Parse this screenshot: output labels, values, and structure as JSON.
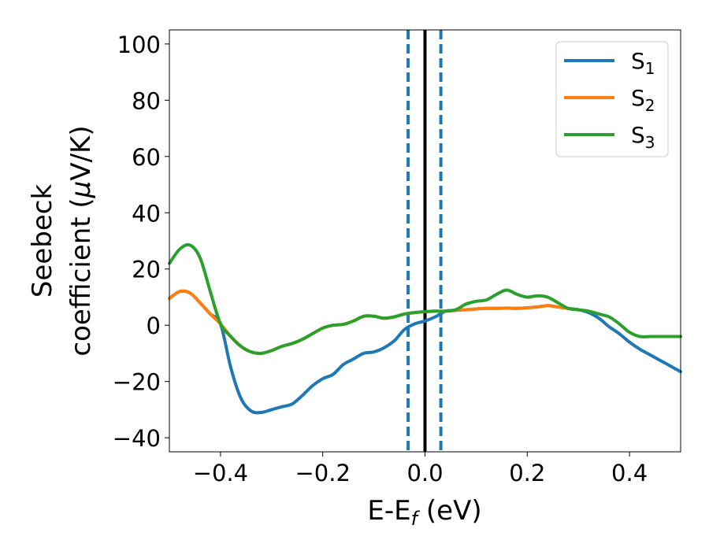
{
  "chart_data": {
    "type": "line",
    "title": "",
    "xlabel": "E-E",
    "xlabel_sub": "f",
    "xlabel_unit": " (eV)",
    "ylabel_line1": "Seebeck",
    "ylabel_line2": "coefficient  (",
    "ylabel_mu": "μ",
    "ylabel_unit": "V/K)",
    "xlim": [
      -0.5,
      0.5
    ],
    "ylim": [
      -45,
      105
    ],
    "xticks": [
      -0.4,
      -0.2,
      0.0,
      0.2,
      0.4
    ],
    "xtick_labels": [
      "−0.4",
      "−0.2",
      "0.0",
      "0.2",
      "0.4"
    ],
    "yticks": [
      -40,
      -20,
      0,
      20,
      40,
      60,
      80,
      100
    ],
    "ytick_labels": [
      "−40",
      "−20",
      "0",
      "20",
      "40",
      "60",
      "80",
      "100"
    ],
    "grid": false,
    "legend_position": "top-right",
    "vlines": [
      {
        "x": -0.033,
        "style": "dashed",
        "color": "#1f77b4"
      },
      {
        "x": 0.0,
        "style": "solid",
        "color": "#000000"
      },
      {
        "x": 0.031,
        "style": "dashed",
        "color": "#1f77b4"
      }
    ],
    "series": [
      {
        "name": "S",
        "sub": "1",
        "color": "#1f77b4",
        "x": [
          -0.5,
          -0.48,
          -0.46,
          -0.44,
          -0.42,
          -0.4,
          -0.38,
          -0.36,
          -0.34,
          -0.32,
          -0.3,
          -0.28,
          -0.26,
          -0.24,
          -0.22,
          -0.2,
          -0.18,
          -0.16,
          -0.14,
          -0.12,
          -0.1,
          -0.08,
          -0.06,
          -0.04,
          -0.02,
          0.0,
          0.02,
          0.04,
          0.06,
          0.08,
          0.1,
          0.12,
          0.14,
          0.16,
          0.18,
          0.2,
          0.22,
          0.24,
          0.26,
          0.28,
          0.3,
          0.32,
          0.34,
          0.36,
          0.38,
          0.4,
          0.42,
          0.44,
          0.46,
          0.48,
          0.5
        ],
        "y": [
          9.5,
          12,
          11.5,
          8,
          4,
          0.5,
          -15,
          -26,
          -30.5,
          -31,
          -30,
          -29,
          -28,
          -25,
          -21.5,
          -19,
          -17.5,
          -14,
          -12,
          -10,
          -9.5,
          -8,
          -5.5,
          -1.5,
          0.5,
          1.5,
          3,
          5,
          5.3,
          5.5,
          5.8,
          6,
          6,
          6.1,
          6,
          6.2,
          6.5,
          7,
          6.5,
          6,
          5.5,
          4.5,
          2.5,
          -0.5,
          -3,
          -6,
          -8.5,
          -10.5,
          -12.5,
          -14.5,
          -16.5
        ]
      },
      {
        "name": "S",
        "sub": "2",
        "color": "#ff7f0e",
        "x": [
          -0.5,
          -0.48,
          -0.46,
          -0.44,
          -0.42,
          -0.4,
          -0.38,
          -0.36,
          -0.34,
          -0.32,
          -0.3,
          -0.28,
          -0.26,
          -0.24,
          -0.22,
          -0.2,
          -0.18,
          -0.16,
          -0.14,
          -0.12,
          -0.1,
          -0.08,
          -0.06,
          -0.04,
          -0.02,
          0.0,
          0.02,
          0.04,
          0.06,
          0.08,
          0.1,
          0.12,
          0.14,
          0.16,
          0.18,
          0.2,
          0.22,
          0.24,
          0.26,
          0.28,
          0.3
        ],
        "y": [
          9.5,
          12,
          11.5,
          8,
          4,
          0.5,
          -4,
          -7.5,
          -9.5,
          -10,
          -9,
          -7.5,
          -6.5,
          -5,
          -3,
          -1,
          0,
          0.3,
          1.5,
          3.2,
          3.2,
          2.5,
          3,
          4,
          4.5,
          4.8,
          5,
          5,
          5.3,
          5.5,
          5.8,
          6,
          6,
          6.1,
          6,
          6.2,
          6.5,
          7,
          6.5,
          6,
          5.5
        ]
      },
      {
        "name": "S",
        "sub": "3",
        "color": "#2ca02c",
        "x": [
          -0.5,
          -0.48,
          -0.46,
          -0.44,
          -0.42,
          -0.4,
          -0.38,
          -0.36,
          -0.34,
          -0.32,
          -0.3,
          -0.28,
          -0.26,
          -0.24,
          -0.22,
          -0.2,
          -0.18,
          -0.16,
          -0.14,
          -0.12,
          -0.1,
          -0.08,
          -0.06,
          -0.04,
          -0.02,
          0.0,
          0.02,
          0.04,
          0.06,
          0.08,
          0.1,
          0.12,
          0.14,
          0.16,
          0.18,
          0.2,
          0.22,
          0.24,
          0.26,
          0.28,
          0.3,
          0.32,
          0.34,
          0.36,
          0.38,
          0.4,
          0.42,
          0.44,
          0.46,
          0.48,
          0.5
        ],
        "y": [
          22,
          27,
          28.5,
          24,
          12,
          0.5,
          -4,
          -7.5,
          -9.5,
          -10,
          -9,
          -7.5,
          -6.5,
          -5,
          -3,
          -1,
          0,
          0.3,
          1.5,
          3.2,
          3.2,
          2.5,
          3,
          4,
          4.5,
          4.8,
          5,
          5,
          5.5,
          7.5,
          8.5,
          9,
          11,
          12.5,
          11,
          10,
          10.5,
          10,
          8,
          6,
          5.5,
          5,
          4,
          3,
          0.5,
          -2.5,
          -4,
          -4,
          -4,
          -4,
          -4
        ]
      }
    ]
  }
}
